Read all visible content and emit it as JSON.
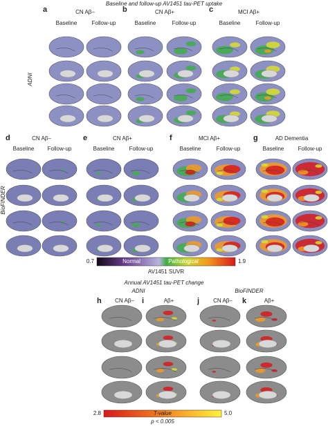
{
  "header": {
    "title": "Baseline and follow-up AV1451 tau-PET uptake"
  },
  "uptake_panels": [
    {
      "letter": "a",
      "group": "CN Aβ–",
      "columns": [
        "Baseline",
        "Follow-up"
      ]
    },
    {
      "letter": "b",
      "group": "CN Aβ+",
      "columns": [
        "Baseline",
        "Follow-up"
      ]
    },
    {
      "letter": "c",
      "group": "MCI Aβ+",
      "columns": [
        "Baseline",
        "Follow-up"
      ]
    },
    {
      "letter": "d",
      "group": "CN Aβ–",
      "columns": [
        "Baseline",
        "Follow-up"
      ]
    },
    {
      "letter": "e",
      "group": "CN Aβ+",
      "columns": [
        "Baseline",
        "Follow-up"
      ]
    },
    {
      "letter": "f",
      "group": "MCI Aβ+",
      "columns": [
        "Baseline",
        "Follow-up"
      ]
    },
    {
      "letter": "g",
      "group": "AD Dementia",
      "columns": [
        "Baseline",
        "Follow-up"
      ]
    }
  ],
  "cohorts": [
    "ADNI",
    "BioFINDER"
  ],
  "suvr_colorbar": {
    "min": "0.7",
    "normal": "Normal",
    "pathological": "Pathological",
    "max": "1.9",
    "label": "AV1451 SUVR"
  },
  "change": {
    "title": "Annual AV1451 tau-PET change",
    "cohorts": [
      "ADNI",
      "BioFINDER"
    ],
    "panels": [
      {
        "letter": "h",
        "group": "CN Aβ–"
      },
      {
        "letter": "i",
        "group": "Aβ+"
      },
      {
        "letter": "j",
        "group": "CN Aβ–"
      },
      {
        "letter": "k",
        "group": "Aβ+"
      }
    ],
    "colorbar": {
      "min": "2.8",
      "label": "T-value",
      "max": "5.0",
      "threshold": "p < 0.005"
    }
  }
}
